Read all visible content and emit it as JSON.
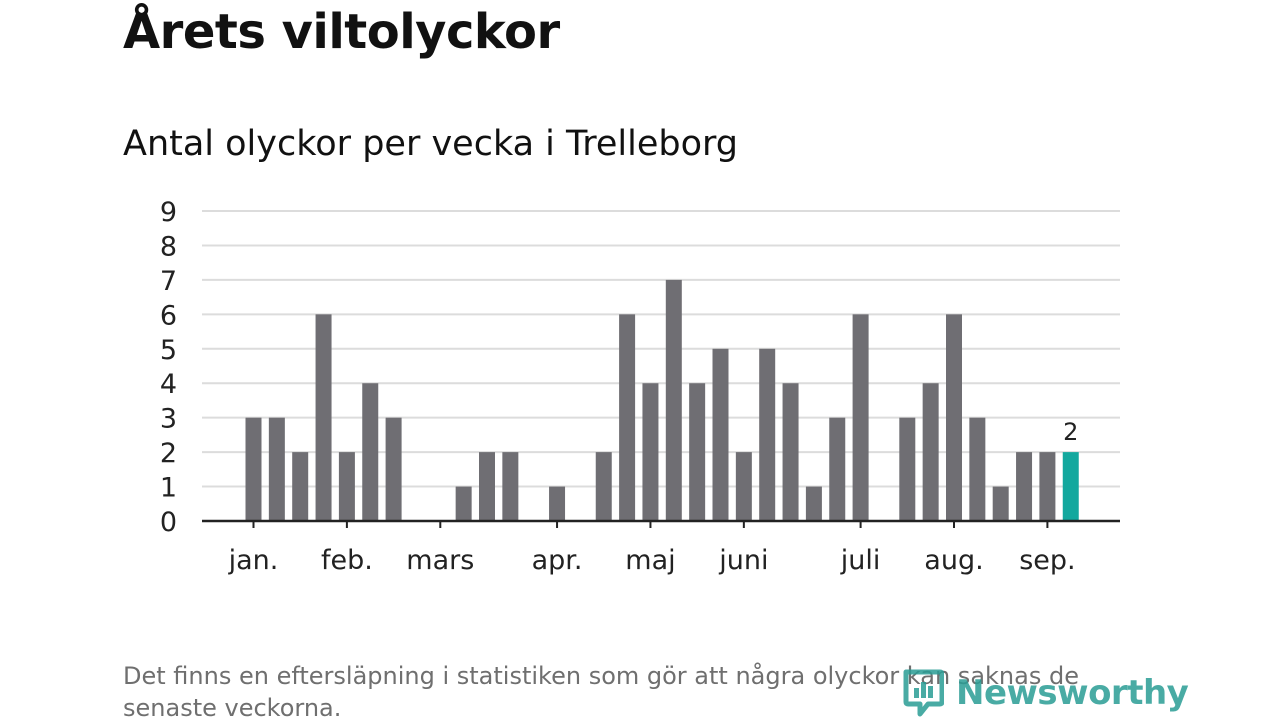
{
  "header": {
    "title": "Årets viltolyckor",
    "subtitle": "Antal olyckor per vecka i Trelleborg"
  },
  "footer": {
    "note": "Det finns en eftersläpning i statistiken som gör att några olyckor kan saknas de senaste veckorna.",
    "brand": "Newsworthy"
  },
  "colors": {
    "bar": "#6f6e73",
    "highlight": "#13a89e",
    "grid": "#dcdcdc",
    "axis": "#222222",
    "text": "#222222"
  },
  "chart_data": {
    "type": "bar",
    "title": "Antal olyckor per vecka i Trelleborg",
    "xlabel": "",
    "ylabel": "",
    "ylim": [
      0,
      9
    ],
    "y_ticks": [
      0,
      1,
      2,
      3,
      4,
      5,
      6,
      7,
      8,
      9
    ],
    "grid": true,
    "x_tick_labels": [
      "jan.",
      "feb.",
      "mars",
      "apr.",
      "maj",
      "juni",
      "juli",
      "aug.",
      "sep."
    ],
    "x_tick_weeks": [
      1,
      5,
      9,
      14,
      18,
      22,
      27,
      31,
      35
    ],
    "weeks": [
      1,
      2,
      3,
      4,
      5,
      6,
      7,
      8,
      9,
      10,
      11,
      12,
      13,
      14,
      15,
      16,
      17,
      18,
      19,
      20,
      21,
      22,
      23,
      24,
      25,
      26,
      27,
      28,
      29,
      30,
      31,
      32,
      33,
      34,
      35,
      36
    ],
    "values": [
      3,
      3,
      2,
      6,
      2,
      4,
      3,
      0,
      0,
      1,
      2,
      2,
      0,
      1,
      0,
      2,
      6,
      4,
      7,
      4,
      5,
      2,
      5,
      4,
      1,
      3,
      6,
      0,
      3,
      4,
      6,
      3,
      1,
      2,
      2,
      2
    ],
    "highlight_index": 35,
    "highlight_label": "2"
  }
}
